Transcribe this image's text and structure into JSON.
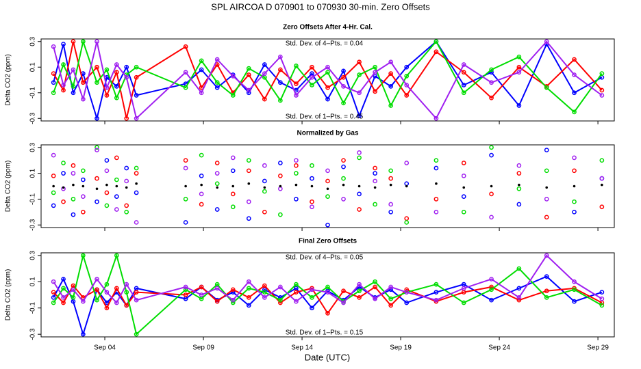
{
  "title": "SPL   AIRCOA D   070901 to 070930   30-min. Zero Offsets",
  "xlabel": "Date (UTC)",
  "chart_data": [
    {
      "type": "line",
      "title": "Zero Offsets After 4-Hr. Cal.",
      "ylabel": "Delta CO2 (ppm)",
      "annotations": [
        "Std. Dev. of 4–Pts. =  0.04",
        "Std. Dev. of 1–Pts. =  0.45"
      ],
      "xlim": [
        0.77,
        29.83
      ],
      "ylim": [
        -0.32,
        0.32
      ],
      "yticks": [
        -0.3,
        -0.1,
        0.1,
        0.3
      ],
      "xticks": [
        4,
        9,
        14,
        19,
        24,
        29
      ],
      "x": [
        1.4,
        1.9,
        2.4,
        2.9,
        3.6,
        4.1,
        4.6,
        5.1,
        5.6,
        8.1,
        8.9,
        9.7,
        10.5,
        11.3,
        12.1,
        12.9,
        13.7,
        14.5,
        15.3,
        16.1,
        16.9,
        17.7,
        18.5,
        19.3,
        20.8,
        22.2,
        23.6,
        25.0,
        26.4,
        27.8,
        29.2
      ],
      "series": [
        {
          "color": "#0000ff",
          "values": [
            -0.02,
            0.28,
            -0.1,
            0.05,
            -0.3,
            0.02,
            -0.05,
            0.1,
            -0.12,
            -0.03,
            0.08,
            -0.06,
            0.04,
            -0.1,
            0.12,
            -0.02,
            -0.08,
            0.05,
            -0.15,
            0.07,
            -0.28,
            0.03,
            -0.05,
            0.1,
            0.3,
            -0.04,
            0.06,
            -0.2,
            0.28,
            -0.1,
            0.02
          ]
        },
        {
          "color": "#ff0000",
          "values": [
            0.05,
            -0.08,
            0.3,
            -0.02,
            0.1,
            -0.12,
            0.06,
            -0.3,
            0.02,
            0.26,
            -0.06,
            0.12,
            -0.1,
            0.04,
            -0.15,
            0.08,
            -0.03,
            0.1,
            -0.06,
            0.02,
            0.14,
            -0.09,
            0.05,
            -0.12,
            0.22,
            0.06,
            -0.14,
            0.1,
            -0.05,
            0.16,
            -0.08
          ]
        },
        {
          "color": "#00dd00",
          "values": [
            -0.1,
            0.12,
            -0.05,
            0.3,
            -0.02,
            0.08,
            -0.14,
            0.04,
            0.1,
            -0.06,
            0.15,
            -0.02,
            -0.12,
            0.09,
            0.02,
            -0.16,
            0.11,
            -0.04,
            0.06,
            -0.18,
            0.04,
            0.1,
            -0.2,
            0.03,
            0.3,
            -0.1,
            0.08,
            0.18,
            -0.06,
            -0.25,
            0.05
          ]
        },
        {
          "color": "#a020f0",
          "values": [
            0.26,
            -0.04,
            0.08,
            -0.15,
            0.3,
            -0.06,
            0.12,
            0.02,
            -0.3,
            0.06,
            -0.1,
            0.16,
            0.03,
            -0.08,
            0.05,
            0.18,
            -0.12,
            0.02,
            0.1,
            -0.05,
            -0.1,
            0.06,
            0.14,
            -0.04,
            -0.3,
            0.12,
            -0.02,
            0.06,
            0.3,
            0.04,
            -0.12
          ]
        }
      ]
    },
    {
      "type": "scatter",
      "title": "Normalized by Gas",
      "ylabel": "Delta CO2 (ppm)",
      "xlim": [
        0.77,
        29.83
      ],
      "ylim": [
        -0.32,
        0.32
      ],
      "yticks": [
        -0.3,
        -0.1,
        0.1,
        0.3
      ],
      "xticks": [
        4,
        9,
        14,
        19,
        24,
        29
      ],
      "x": [
        1.4,
        1.9,
        2.4,
        2.9,
        3.6,
        4.1,
        4.6,
        5.1,
        5.6,
        8.1,
        8.9,
        9.7,
        10.5,
        11.3,
        12.1,
        12.9,
        13.7,
        14.5,
        15.3,
        16.1,
        16.9,
        17.7,
        18.5,
        19.3,
        20.8,
        22.2,
        23.6,
        25.0,
        26.4,
        27.8,
        29.2
      ],
      "series": [
        {
          "color": "#0000ff",
          "values": [
            -0.15,
            0.1,
            -0.22,
            0.05,
            -0.12,
            0.2,
            -0.08,
            0.14,
            -0.05,
            -0.28,
            0.08,
            -0.18,
            0.12,
            -0.25,
            0.04,
            0.18,
            -0.1,
            0.06,
            -0.3,
            0.15,
            -0.06,
            0.1,
            -0.2,
            0.02,
            0.14,
            -0.08,
            0.24,
            -0.14,
            0.28,
            -0.2,
            0.06
          ]
        },
        {
          "color": "#ff0000",
          "values": [
            0.08,
            -0.12,
            0.16,
            -0.2,
            0.06,
            -0.05,
            0.22,
            -0.15,
            0.1,
            0.2,
            -0.14,
            0.18,
            -0.06,
            0.12,
            -0.2,
            0.08,
            0.16,
            -0.12,
            0.04,
            0.2,
            -0.18,
            0.14,
            0.06,
            -0.25,
            -0.1,
            0.18,
            -0.06,
            0.1,
            -0.24,
            0.12,
            -0.16
          ]
        },
        {
          "color": "#00dd00",
          "values": [
            -0.05,
            0.18,
            -0.1,
            0.12,
            0.3,
            -0.15,
            0.05,
            -0.2,
            0.14,
            -0.1,
            0.24,
            0.02,
            -0.16,
            0.2,
            -0.04,
            -0.22,
            0.1,
            0.16,
            -0.08,
            0.06,
            0.22,
            -0.14,
            0.12,
            -0.28,
            0.2,
            -0.2,
            0.3,
            -0.02,
            0.12,
            -0.12,
            0.2
          ]
        },
        {
          "color": "#a020f0",
          "values": [
            0.24,
            -0.02,
            0.1,
            -0.08,
            0.28,
            0.12,
            -0.18,
            0.04,
            -0.28,
            0.14,
            -0.06,
            0.1,
            0.22,
            -0.12,
            0.16,
            -0.02,
            0.2,
            -0.16,
            0.12,
            -0.1,
            0.26,
            0.04,
            -0.14,
            0.18,
            -0.2,
            0.08,
            -0.24,
            0.16,
            -0.1,
            0.22,
            0.06
          ]
        },
        {
          "color": "#000000",
          "marker": "dot",
          "values": [
            0.0,
            -0.01,
            0.01,
            0.0,
            -0.02,
            0.01,
            0.0,
            -0.01,
            0.02,
            0.0,
            0.01,
            -0.01,
            0.0,
            0.02,
            -0.01,
            0.0,
            0.01,
            0.0,
            -0.02,
            0.01,
            0.0,
            -0.01,
            0.01,
            0.0,
            0.02,
            -0.01,
            0.0,
            0.01,
            -0.01,
            0.0,
            0.01
          ]
        }
      ]
    },
    {
      "type": "line",
      "title": "Final Zero Offsets",
      "ylabel": "Delta CO2 (ppm)",
      "annotations": [
        "Std. Dev. of 4–Pts. =  0.05",
        "Std. Dev. of 1–Pts. =  0.15"
      ],
      "xlim": [
        0.77,
        29.83
      ],
      "ylim": [
        -0.32,
        0.32
      ],
      "yticks": [
        -0.3,
        -0.1,
        0.1,
        0.3
      ],
      "xticks": [
        {
          "value": 4,
          "label": "Sep 04"
        },
        {
          "value": 9,
          "label": "Sep 09"
        },
        {
          "value": 14,
          "label": "Sep 14"
        },
        {
          "value": 19,
          "label": "Sep 19"
        },
        {
          "value": 24,
          "label": "Sep 24"
        },
        {
          "value": 29,
          "label": "Sep 29"
        }
      ],
      "x": [
        1.4,
        1.9,
        2.4,
        2.9,
        3.6,
        4.1,
        4.6,
        5.1,
        5.6,
        8.1,
        8.9,
        9.7,
        10.5,
        11.3,
        12.1,
        12.9,
        13.7,
        14.5,
        15.3,
        16.1,
        16.9,
        17.7,
        18.5,
        19.3,
        20.8,
        22.2,
        23.6,
        25.0,
        26.4,
        27.8,
        29.2
      ],
      "series": [
        {
          "color": "#0000ff",
          "values": [
            -0.02,
            0.12,
            -0.05,
            -0.3,
            0.04,
            -0.06,
            0.02,
            -0.08,
            0.05,
            -0.03,
            0.06,
            -0.04,
            0.02,
            -0.08,
            0.04,
            -0.02,
            0.05,
            -0.1,
            0.03,
            -0.04,
            0.06,
            -0.02,
            0.04,
            -0.06,
            0.02,
            0.08,
            -0.04,
            0.05,
            0.14,
            -0.05,
            0.02
          ]
        },
        {
          "color": "#ff0000",
          "values": [
            0.02,
            -0.06,
            0.07,
            -0.02,
            0.04,
            -0.1,
            0.05,
            -0.08,
            0.02,
            0.0,
            0.06,
            -0.05,
            0.04,
            -0.02,
            0.07,
            -0.06,
            0.02,
            0.05,
            -0.14,
            0.03,
            -0.02,
            0.06,
            -0.08,
            0.04,
            -0.05,
            0.02,
            0.06,
            -0.04,
            0.03,
            0.05,
            -0.06
          ]
        },
        {
          "color": "#00dd00",
          "values": [
            -0.06,
            0.05,
            -0.02,
            0.3,
            -0.04,
            0.08,
            0.3,
            0.02,
            -0.3,
            0.04,
            -0.03,
            0.08,
            -0.06,
            0.05,
            0.02,
            -0.04,
            0.08,
            -0.02,
            0.06,
            -0.05,
            0.03,
            0.1,
            -0.03,
            0.02,
            0.08,
            -0.06,
            0.04,
            0.2,
            -0.02,
            0.04,
            -0.08
          ]
        },
        {
          "color": "#a020f0",
          "values": [
            0.1,
            -0.02,
            0.04,
            -0.05,
            0.12,
            0.02,
            -0.06,
            0.08,
            -0.04,
            0.06,
            0.0,
            0.05,
            -0.04,
            0.1,
            -0.02,
            0.06,
            -0.05,
            0.04,
            0.02,
            -0.06,
            0.08,
            -0.03,
            0.06,
            0.02,
            -0.04,
            0.05,
            0.12,
            -0.02,
            0.3,
            0.1,
            -0.03
          ]
        }
      ]
    }
  ]
}
